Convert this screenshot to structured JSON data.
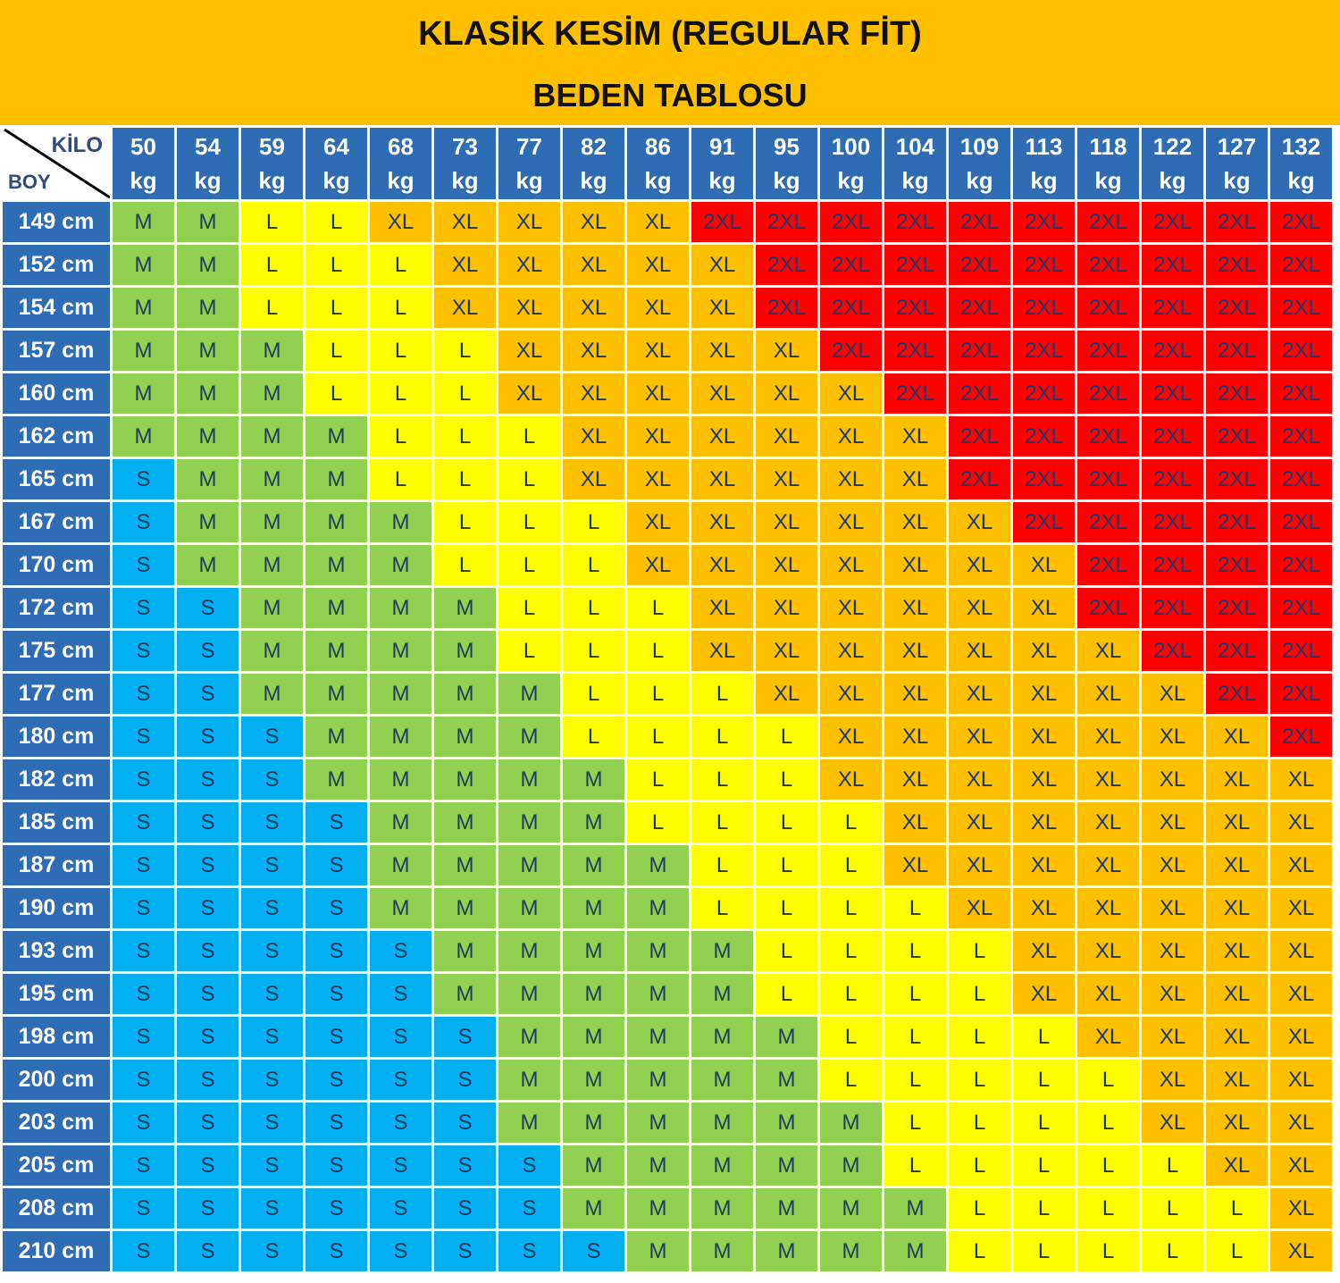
{
  "title": "KLASİK KESİM (REGULAR FİT)",
  "subtitle": "BEDEN TABLOSU",
  "corner": {
    "column_label": "KİLO",
    "row_label": "BOY"
  },
  "weights": [
    "50",
    "54",
    "59",
    "64",
    "68",
    "73",
    "77",
    "82",
    "86",
    "91",
    "95",
    "100",
    "104",
    "109",
    "113",
    "118",
    "122",
    "127",
    "132"
  ],
  "weight_unit": "kg",
  "size_colors": {
    "S": "#00b0f0",
    "M": "#92d050",
    "L": "#ffff00",
    "XL": "#ffc000",
    "2XL": "#ff0000"
  },
  "rows": [
    {
      "height": "149 cm",
      "sizes": [
        "M",
        "M",
        "L",
        "L",
        "XL",
        "XL",
        "XL",
        "XL",
        "XL",
        "2XL",
        "2XL",
        "2XL",
        "2XL",
        "2XL",
        "2XL",
        "2XL",
        "2XL",
        "2XL",
        "2XL"
      ]
    },
    {
      "height": "152 cm",
      "sizes": [
        "M",
        "M",
        "L",
        "L",
        "L",
        "XL",
        "XL",
        "XL",
        "XL",
        "XL",
        "2XL",
        "2XL",
        "2XL",
        "2XL",
        "2XL",
        "2XL",
        "2XL",
        "2XL",
        "2XL"
      ]
    },
    {
      "height": "154 cm",
      "sizes": [
        "M",
        "M",
        "L",
        "L",
        "L",
        "XL",
        "XL",
        "XL",
        "XL",
        "XL",
        "2XL",
        "2XL",
        "2XL",
        "2XL",
        "2XL",
        "2XL",
        "2XL",
        "2XL",
        "2XL"
      ]
    },
    {
      "height": "157 cm",
      "sizes": [
        "M",
        "M",
        "M",
        "L",
        "L",
        "L",
        "XL",
        "XL",
        "XL",
        "XL",
        "XL",
        "2XL",
        "2XL",
        "2XL",
        "2XL",
        "2XL",
        "2XL",
        "2XL",
        "2XL"
      ]
    },
    {
      "height": "160 cm",
      "sizes": [
        "M",
        "M",
        "M",
        "L",
        "L",
        "L",
        "XL",
        "XL",
        "XL",
        "XL",
        "XL",
        "XL",
        "2XL",
        "2XL",
        "2XL",
        "2XL",
        "2XL",
        "2XL",
        "2XL"
      ]
    },
    {
      "height": "162 cm",
      "sizes": [
        "M",
        "M",
        "M",
        "M",
        "L",
        "L",
        "L",
        "XL",
        "XL",
        "XL",
        "XL",
        "XL",
        "XL",
        "2XL",
        "2XL",
        "2XL",
        "2XL",
        "2XL",
        "2XL"
      ]
    },
    {
      "height": "165 cm",
      "sizes": [
        "S",
        "M",
        "M",
        "M",
        "L",
        "L",
        "L",
        "XL",
        "XL",
        "XL",
        "XL",
        "XL",
        "XL",
        "2XL",
        "2XL",
        "2XL",
        "2XL",
        "2XL",
        "2XL"
      ]
    },
    {
      "height": "167 cm",
      "sizes": [
        "S",
        "M",
        "M",
        "M",
        "M",
        "L",
        "L",
        "L",
        "XL",
        "XL",
        "XL",
        "XL",
        "XL",
        "XL",
        "2XL",
        "2XL",
        "2XL",
        "2XL",
        "2XL"
      ]
    },
    {
      "height": "170 cm",
      "sizes": [
        "S",
        "M",
        "M",
        "M",
        "M",
        "L",
        "L",
        "L",
        "XL",
        "XL",
        "XL",
        "XL",
        "XL",
        "XL",
        "XL",
        "2XL",
        "2XL",
        "2XL",
        "2XL"
      ]
    },
    {
      "height": "172 cm",
      "sizes": [
        "S",
        "S",
        "M",
        "M",
        "M",
        "M",
        "L",
        "L",
        "L",
        "XL",
        "XL",
        "XL",
        "XL",
        "XL",
        "XL",
        "2XL",
        "2XL",
        "2XL",
        "2XL"
      ]
    },
    {
      "height": "175 cm",
      "sizes": [
        "S",
        "S",
        "M",
        "M",
        "M",
        "M",
        "L",
        "L",
        "L",
        "XL",
        "XL",
        "XL",
        "XL",
        "XL",
        "XL",
        "XL",
        "2XL",
        "2XL",
        "2XL"
      ]
    },
    {
      "height": "177 cm",
      "sizes": [
        "S",
        "S",
        "M",
        "M",
        "M",
        "M",
        "M",
        "L",
        "L",
        "L",
        "XL",
        "XL",
        "XL",
        "XL",
        "XL",
        "XL",
        "XL",
        "2XL",
        "2XL"
      ]
    },
    {
      "height": "180 cm",
      "sizes": [
        "S",
        "S",
        "S",
        "M",
        "M",
        "M",
        "M",
        "L",
        "L",
        "L",
        "L",
        "XL",
        "XL",
        "XL",
        "XL",
        "XL",
        "XL",
        "XL",
        "2XL"
      ]
    },
    {
      "height": "182 cm",
      "sizes": [
        "S",
        "S",
        "S",
        "M",
        "M",
        "M",
        "M",
        "M",
        "L",
        "L",
        "L",
        "XL",
        "XL",
        "XL",
        "XL",
        "XL",
        "XL",
        "XL",
        "XL"
      ]
    },
    {
      "height": "185 cm",
      "sizes": [
        "S",
        "S",
        "S",
        "S",
        "M",
        "M",
        "M",
        "M",
        "L",
        "L",
        "L",
        "L",
        "XL",
        "XL",
        "XL",
        "XL",
        "XL",
        "XL",
        "XL"
      ]
    },
    {
      "height": "187 cm",
      "sizes": [
        "S",
        "S",
        "S",
        "S",
        "M",
        "M",
        "M",
        "M",
        "M",
        "L",
        "L",
        "L",
        "XL",
        "XL",
        "XL",
        "XL",
        "XL",
        "XL",
        "XL"
      ]
    },
    {
      "height": "190 cm",
      "sizes": [
        "S",
        "S",
        "S",
        "S",
        "M",
        "M",
        "M",
        "M",
        "M",
        "L",
        "L",
        "L",
        "L",
        "XL",
        "XL",
        "XL",
        "XL",
        "XL",
        "XL"
      ]
    },
    {
      "height": "193 cm",
      "sizes": [
        "S",
        "S",
        "S",
        "S",
        "S",
        "M",
        "M",
        "M",
        "M",
        "M",
        "L",
        "L",
        "L",
        "L",
        "XL",
        "XL",
        "XL",
        "XL",
        "XL"
      ]
    },
    {
      "height": "195 cm",
      "sizes": [
        "S",
        "S",
        "S",
        "S",
        "S",
        "M",
        "M",
        "M",
        "M",
        "M",
        "L",
        "L",
        "L",
        "L",
        "XL",
        "XL",
        "XL",
        "XL",
        "XL"
      ]
    },
    {
      "height": "198 cm",
      "sizes": [
        "S",
        "S",
        "S",
        "S",
        "S",
        "S",
        "M",
        "M",
        "M",
        "M",
        "M",
        "L",
        "L",
        "L",
        "L",
        "XL",
        "XL",
        "XL",
        "XL"
      ]
    },
    {
      "height": "200 cm",
      "sizes": [
        "S",
        "S",
        "S",
        "S",
        "S",
        "S",
        "M",
        "M",
        "M",
        "M",
        "M",
        "L",
        "L",
        "L",
        "L",
        "L",
        "XL",
        "XL",
        "XL"
      ]
    },
    {
      "height": "203 cm",
      "sizes": [
        "S",
        "S",
        "S",
        "S",
        "S",
        "S",
        "M",
        "M",
        "M",
        "M",
        "M",
        "M",
        "L",
        "L",
        "L",
        "L",
        "XL",
        "XL",
        "XL"
      ]
    },
    {
      "height": "205 cm",
      "sizes": [
        "S",
        "S",
        "S",
        "S",
        "S",
        "S",
        "S",
        "M",
        "M",
        "M",
        "M",
        "M",
        "L",
        "L",
        "L",
        "L",
        "L",
        "XL",
        "XL"
      ]
    },
    {
      "height": "208 cm",
      "sizes": [
        "S",
        "S",
        "S",
        "S",
        "S",
        "S",
        "S",
        "M",
        "M",
        "M",
        "M",
        "M",
        "M",
        "L",
        "L",
        "L",
        "L",
        "L",
        "XL"
      ]
    },
    {
      "height": "210 cm",
      "sizes": [
        "S",
        "S",
        "S",
        "S",
        "S",
        "S",
        "S",
        "S",
        "M",
        "M",
        "M",
        "M",
        "M",
        "L",
        "L",
        "L",
        "L",
        "L",
        "XL"
      ]
    }
  ]
}
